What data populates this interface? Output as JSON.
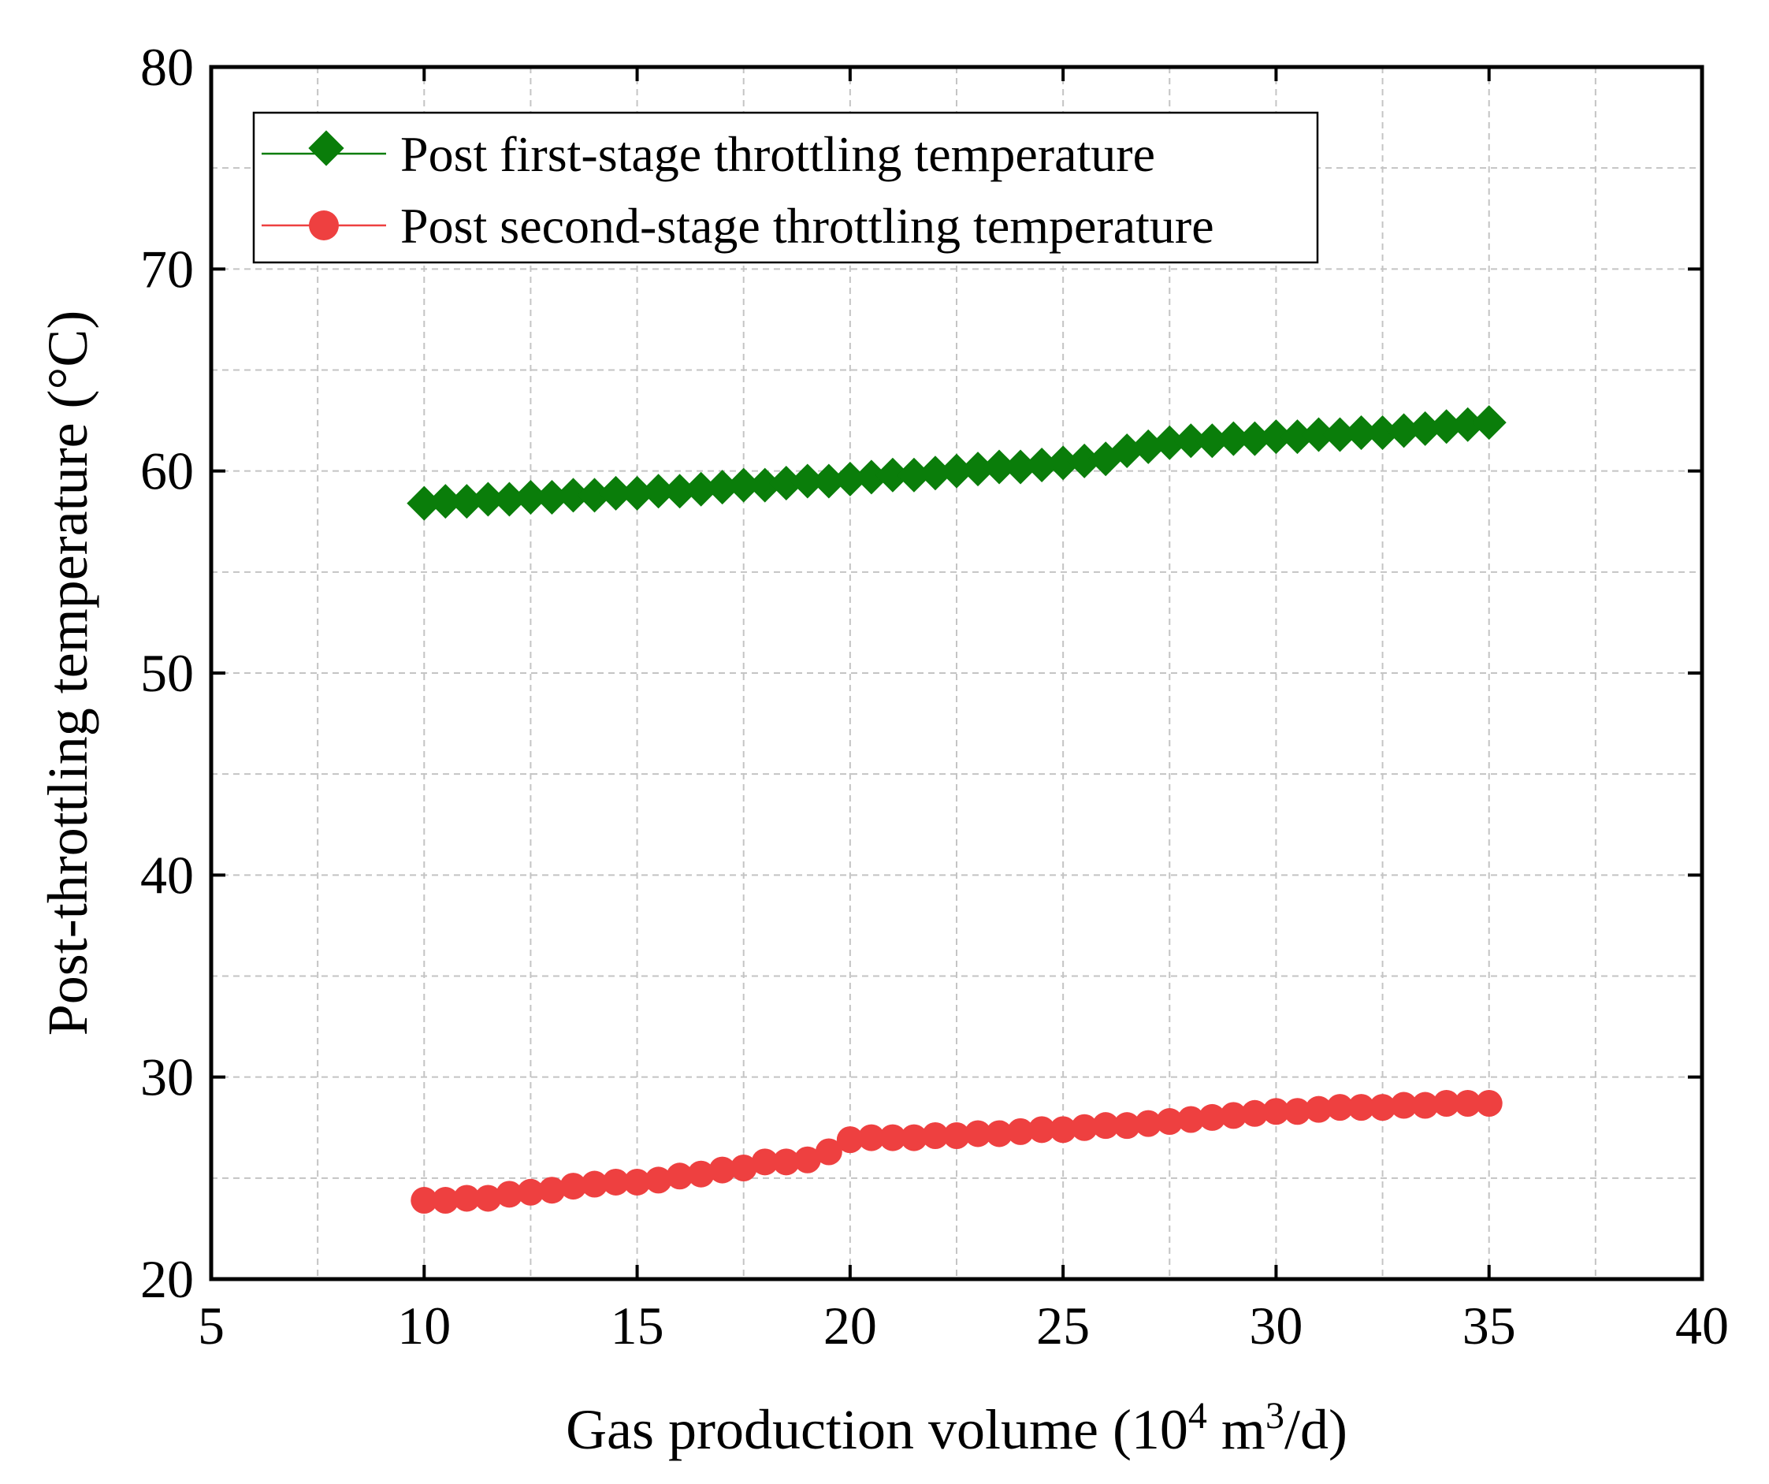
{
  "chart_data": {
    "type": "line",
    "title": "",
    "xlabel": "Gas production volume (10",
    "xlabel_sup1": "4",
    "xlabel_mid": " m",
    "xlabel_sup2": "3",
    "xlabel_end": "/d)",
    "ylabel": "Post-throttling temperature (°C)",
    "xlim": [
      5,
      40
    ],
    "ylim": [
      20,
      80
    ],
    "xticks": [
      5,
      10,
      15,
      20,
      25,
      30,
      35,
      40
    ],
    "yticks": [
      20,
      30,
      40,
      50,
      60,
      70,
      80
    ],
    "grid": true,
    "legend_position": "top-left",
    "series": [
      {
        "name": "Post first-stage throttling temperature",
        "color": "#0a7d0a",
        "marker": "diamond",
        "x": [
          10,
          10.5,
          11,
          11.5,
          12,
          12.5,
          13,
          13.5,
          14,
          14.5,
          15,
          15.5,
          16,
          16.5,
          17,
          17.5,
          18,
          18.5,
          19,
          19.5,
          20,
          20.5,
          21,
          21.5,
          22,
          22.5,
          23,
          23.5,
          24,
          24.5,
          25,
          25.5,
          26,
          26.5,
          27,
          27.5,
          28,
          28.5,
          29,
          29.5,
          30,
          30.5,
          31,
          31.5,
          32,
          32.5,
          33,
          33.5,
          34,
          34.5,
          35
        ],
        "y": [
          58.4,
          58.5,
          58.5,
          58.6,
          58.6,
          58.7,
          58.7,
          58.8,
          58.8,
          58.9,
          58.9,
          59.0,
          59.0,
          59.1,
          59.2,
          59.3,
          59.3,
          59.4,
          59.5,
          59.5,
          59.6,
          59.7,
          59.8,
          59.8,
          59.9,
          60.0,
          60.1,
          60.2,
          60.2,
          60.3,
          60.4,
          60.5,
          60.6,
          61.0,
          61.2,
          61.4,
          61.5,
          61.5,
          61.6,
          61.6,
          61.7,
          61.7,
          61.8,
          61.8,
          61.9,
          61.9,
          62.0,
          62.1,
          62.2,
          62.3,
          62.4
        ]
      },
      {
        "name": "Post second-stage throttling temperature",
        "color": "#ee4040",
        "marker": "circle",
        "x": [
          10,
          10.5,
          11,
          11.5,
          12,
          12.5,
          13,
          13.5,
          14,
          14.5,
          15,
          15.5,
          16,
          16.5,
          17,
          17.5,
          18,
          18.5,
          19,
          19.5,
          20,
          20.5,
          21,
          21.5,
          22,
          22.5,
          23,
          23.5,
          24,
          24.5,
          25,
          25.5,
          26,
          26.5,
          27,
          27.5,
          28,
          28.5,
          29,
          29.5,
          30,
          30.5,
          31,
          31.5,
          32,
          32.5,
          33,
          33.5,
          34,
          34.5,
          35
        ],
        "y": [
          23.9,
          23.9,
          24.0,
          24.0,
          24.2,
          24.3,
          24.4,
          24.6,
          24.7,
          24.8,
          24.8,
          24.9,
          25.1,
          25.2,
          25.4,
          25.5,
          25.8,
          25.8,
          25.9,
          26.3,
          26.9,
          27.0,
          27.0,
          27.0,
          27.1,
          27.1,
          27.2,
          27.2,
          27.3,
          27.4,
          27.4,
          27.5,
          27.6,
          27.6,
          27.7,
          27.8,
          27.9,
          28.0,
          28.1,
          28.2,
          28.3,
          28.3,
          28.4,
          28.5,
          28.5,
          28.5,
          28.6,
          28.6,
          28.7,
          28.7,
          28.7
        ]
      }
    ]
  }
}
